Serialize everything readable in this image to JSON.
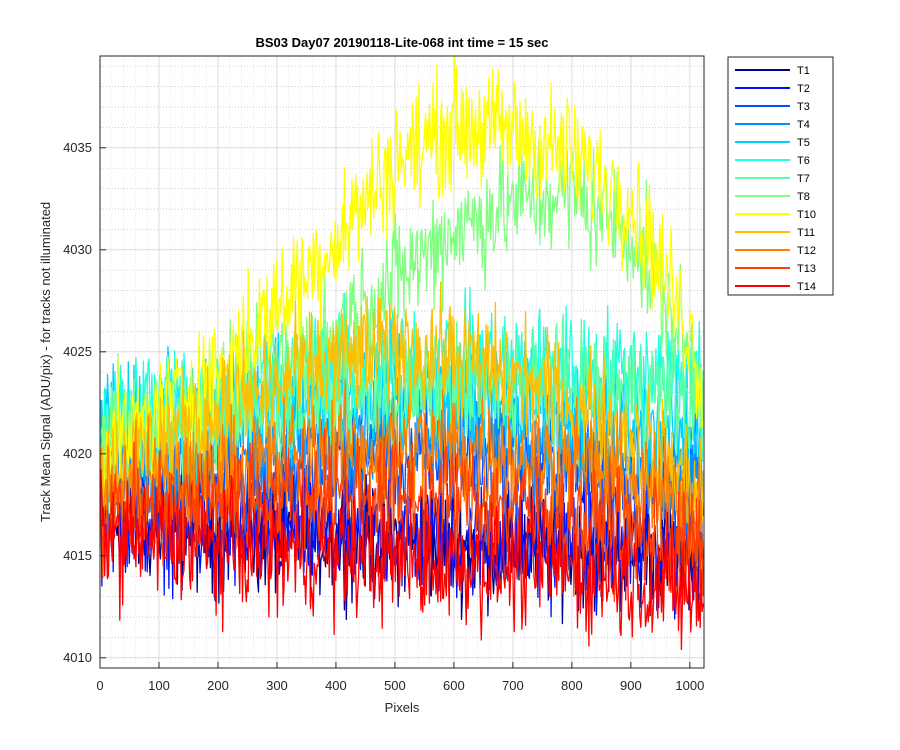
{
  "chart_data": {
    "type": "line",
    "title": "BS03 Day07 20190118-Lite-068 int time = 15 sec",
    "xlabel": "Pixels",
    "ylabel": "Track Mean Signal (ADU/pix) - for tracks not illuminated",
    "xlim": [
      0,
      1024
    ],
    "ylim": [
      4009.5,
      4039.5
    ],
    "x_ticks": [
      0,
      100,
      200,
      300,
      400,
      500,
      600,
      700,
      800,
      900,
      1000
    ],
    "y_ticks": [
      4010,
      4015,
      4020,
      4025,
      4030,
      4035
    ],
    "grid": "major and minor, dotted",
    "legend_position": "outside-right",
    "noise_amplitude_approx": 2.5,
    "series": [
      {
        "name": "T1",
        "color": "#00008f",
        "x": [
          0,
          200,
          400,
          600,
          800,
          1000,
          1024
        ],
        "y": [
          4017,
          4016.0,
          4016.0,
          4015.6,
          4015.4,
          4015.0,
          4015.2
        ]
      },
      {
        "name": "T2",
        "color": "#0010ff",
        "x": [
          0,
          200,
          400,
          600,
          800,
          1000,
          1024
        ],
        "y": [
          4017,
          4016.2,
          4016.2,
          4015.8,
          4015.6,
          4015.2,
          4015.4
        ]
      },
      {
        "name": "T3",
        "color": "#0050ff",
        "x": [
          0,
          200,
          400,
          600,
          800,
          1000,
          1024
        ],
        "y": [
          4018,
          4018.6,
          4019.6,
          4019.8,
          4019.2,
          4017.8,
          4018.0
        ]
      },
      {
        "name": "T4",
        "color": "#0090ff",
        "x": [
          0,
          200,
          400,
          600,
          800,
          1000,
          1024
        ],
        "y": [
          4019,
          4020.0,
          4021.2,
          4021.4,
          4020.4,
          4018.5,
          4019.0
        ]
      },
      {
        "name": "T5",
        "color": "#00d0ff",
        "x": [
          0,
          200,
          400,
          600,
          800,
          1000,
          1024
        ],
        "y": [
          4021,
          4022.2,
          4023.2,
          4023.0,
          4022.2,
          4021.0,
          4021.5
        ]
      },
      {
        "name": "T6",
        "color": "#20ffdf",
        "x": [
          0,
          200,
          400,
          600,
          800,
          1000,
          1024
        ],
        "y": [
          4022,
          4023.2,
          4024.2,
          4024.4,
          4024.2,
          4024.0,
          4024.2
        ]
      },
      {
        "name": "T7",
        "color": "#60ff9f",
        "x": [
          0,
          200,
          400,
          600,
          800,
          1000,
          1024
        ],
        "y": [
          4020,
          4021.5,
          4022.8,
          4023.2,
          4023.4,
          4022.8,
          4022.5
        ]
      },
      {
        "name": "T8",
        "color": "#80ff80",
        "x": [
          0,
          200,
          400,
          500,
          600,
          700,
          800,
          900,
          1000,
          1024
        ],
        "y": [
          4020,
          4022.5,
          4026.0,
          4028.6,
          4031.0,
          4032.3,
          4032.8,
          4030.8,
          4025.0,
          4022.5
        ]
      },
      {
        "name": "T10",
        "color": "#ffff00",
        "x": [
          0,
          200,
          400,
          500,
          600,
          700,
          800,
          900,
          1000,
          1024
        ],
        "y": [
          4020,
          4024.0,
          4030.5,
          4034.3,
          4036.2,
          4035.8,
          4034.6,
          4032.4,
          4026.0,
          4023.0
        ]
      },
      {
        "name": "T11",
        "color": "#ffbf00",
        "x": [
          0,
          200,
          400,
          500,
          600,
          700,
          800,
          900,
          1000,
          1024
        ],
        "y": [
          4019,
          4022.0,
          4024.5,
          4025.2,
          4024.8,
          4023.8,
          4022.2,
          4020.8,
          4018.6,
          4018.0
        ]
      },
      {
        "name": "T12",
        "color": "#ff8000",
        "x": [
          0,
          200,
          400,
          600,
          800,
          1000,
          1024
        ],
        "y": [
          4018,
          4019.0,
          4020.2,
          4020.3,
          4019.4,
          4017.4,
          4017.0
        ]
      },
      {
        "name": "T13",
        "color": "#ff4000",
        "x": [
          0,
          200,
          400,
          600,
          800,
          1000,
          1024
        ],
        "y": [
          4017,
          4017.6,
          4018.2,
          4017.8,
          4016.8,
          4015.4,
          4015.0
        ]
      },
      {
        "name": "T14",
        "color": "#ff0000",
        "x": [
          0,
          200,
          400,
          600,
          800,
          1000,
          1024
        ],
        "y": [
          4016,
          4015.4,
          4015.0,
          4014.6,
          4014.4,
          4013.2,
          4012.6
        ]
      }
    ]
  }
}
